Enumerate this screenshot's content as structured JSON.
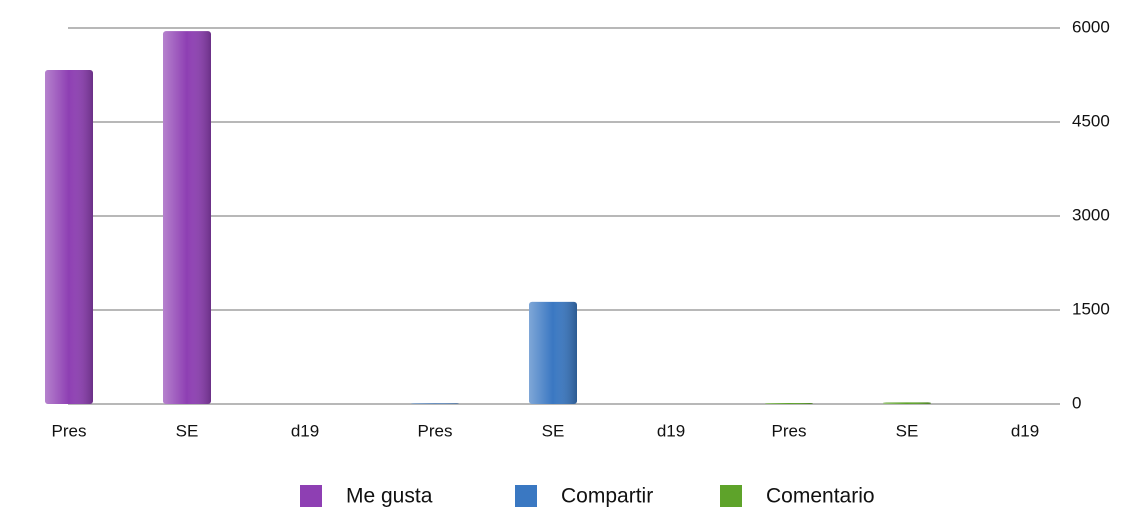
{
  "chart_data": {
    "type": "bar",
    "categories": [
      "Pres",
      "SE",
      "d19",
      "Pres",
      "SE",
      "d19",
      "Pres",
      "SE",
      "d19"
    ],
    "series": [
      {
        "name": "Me gusta",
        "color": "#8e3fb3",
        "values": [
          5330,
          5950,
          0,
          null,
          null,
          null,
          null,
          null,
          null
        ]
      },
      {
        "name": "Compartir",
        "color": "#3a78c2",
        "values": [
          null,
          null,
          null,
          10,
          1630,
          0,
          null,
          null,
          null
        ]
      },
      {
        "name": "Comentario",
        "color": "#5ea32a",
        "values": [
          null,
          null,
          null,
          null,
          null,
          null,
          15,
          25,
          0
        ]
      }
    ],
    "ylim": [
      0,
      6000
    ],
    "yticks": [
      0,
      1500,
      3000,
      4500,
      6000
    ],
    "grid": true,
    "legend": "bottom"
  }
}
